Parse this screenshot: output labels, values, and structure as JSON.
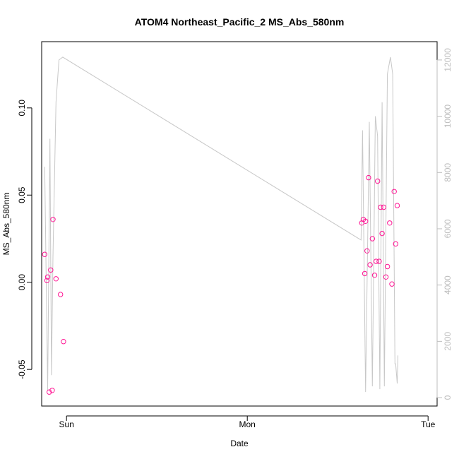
{
  "chart_data": {
    "type": "scatter",
    "title": "ATOM4 Northeast_Pacific_2 MS_Abs_580nm",
    "xlabel": "Date",
    "ylabel": "MS_Abs_580nm",
    "x_ticks": [
      {
        "label": "Sun",
        "value": 24
      },
      {
        "label": "Mon",
        "value": 48
      },
      {
        "label": "Tue",
        "value": 72
      }
    ],
    "xlim": [
      20.7,
      73.2
    ],
    "ylim_left": [
      -0.071,
      0.138
    ],
    "left_ticks": [
      -0.05,
      0.0,
      0.05,
      0.1
    ],
    "left_tick_labels": [
      "-0.05",
      "0.00",
      "0.05",
      "0.10"
    ],
    "ylim_right": [
      -300,
      12650
    ],
    "right_ticks": [
      0,
      2000,
      4000,
      6000,
      8000,
      10000,
      12000
    ],
    "right_tick_labels": [
      "0",
      "2000",
      "4000",
      "6000",
      "8000",
      "10000",
      "12000"
    ],
    "grid": false,
    "colors": {
      "points": "#ff1493",
      "line": "#c8c8c8",
      "right_axis": "#bdbdbd",
      "frame": "#000000"
    },
    "series": [
      {
        "axis": "left",
        "style": "points",
        "x": [
          21.1,
          21.4,
          21.5,
          21.7,
          21.9,
          22.1,
          22.2,
          22.6,
          23.2,
          23.6,
          63.2,
          63.4,
          63.6,
          63.7,
          63.9,
          64.1,
          64.3,
          64.6,
          64.9,
          65.1,
          65.3,
          65.5,
          65.7,
          65.9,
          66.1,
          66.4,
          66.6,
          66.9,
          67.2,
          67.5,
          67.7,
          67.9
        ],
        "y": [
          0.016,
          0.001,
          0.003,
          -0.063,
          0.007,
          -0.062,
          0.036,
          0.002,
          -0.007,
          -0.034,
          0.034,
          0.036,
          0.005,
          0.035,
          0.018,
          0.06,
          0.01,
          0.025,
          0.004,
          0.012,
          0.058,
          0.012,
          0.043,
          0.028,
          0.043,
          0.003,
          0.009,
          0.034,
          -0.001,
          0.052,
          0.022,
          0.044
        ]
      },
      {
        "axis": "right",
        "style": "line",
        "x": [
          21.1,
          21.5,
          21.8,
          22.0,
          22.2,
          22.6,
          23.0,
          23.5,
          63.1,
          63.3,
          63.7,
          64.2,
          64.6,
          65.0,
          65.3,
          65.6,
          65.9,
          66.2,
          66.6,
          67.0,
          67.3,
          67.6,
          67.7,
          67.9,
          68.0
        ],
        "y": [
          8200,
          250,
          9200,
          800,
          5000,
          10500,
          12000,
          12100,
          5600,
          9500,
          200,
          9800,
          400,
          10000,
          9300,
          300,
          10500,
          400,
          11500,
          12100,
          11500,
          1200,
          1200,
          500,
          1500
        ]
      }
    ]
  }
}
